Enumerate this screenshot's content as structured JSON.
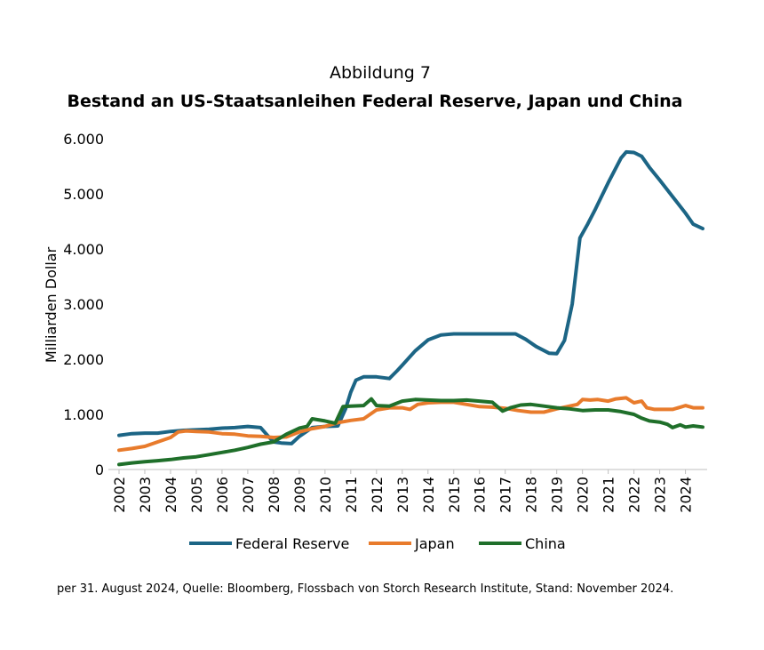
{
  "chart_data": {
    "type": "line",
    "figure_label": "Abbildung 7",
    "title": "Bestand an US-Staatsanleihen Federal Reserve, Japan und China",
    "ylabel": "Milliarden Dollar",
    "xlabel": "",
    "ylim": [
      0,
      6000
    ],
    "y_ticks": [
      0,
      1000,
      2000,
      3000,
      4000,
      5000,
      6000
    ],
    "y_tick_labels": [
      "0",
      "1.000",
      "2.000",
      "3.000",
      "4.000",
      "5.000",
      "6.000"
    ],
    "x_ticks": [
      2002,
      2003,
      2004,
      2005,
      2006,
      2007,
      2008,
      2009,
      2010,
      2011,
      2012,
      2013,
      2014,
      2015,
      2016,
      2017,
      2018,
      2019,
      2020,
      2021,
      2022,
      2023,
      2024
    ],
    "x_range": [
      2002,
      2024.67
    ],
    "legend_position": "bottom",
    "grid": false,
    "footnote": "per 31. August 2024, Quelle: Bloomberg, Flossbach von Storch Research Institute, Stand: November 2024.",
    "series": [
      {
        "name": "Federal Reserve",
        "color": "#1c6585",
        "points": [
          [
            2002.0,
            620
          ],
          [
            2002.5,
            650
          ],
          [
            2003.0,
            660
          ],
          [
            2003.5,
            660
          ],
          [
            2004.0,
            690
          ],
          [
            2004.5,
            710
          ],
          [
            2005.0,
            720
          ],
          [
            2005.5,
            730
          ],
          [
            2006.0,
            750
          ],
          [
            2006.5,
            760
          ],
          [
            2007.0,
            780
          ],
          [
            2007.5,
            760
          ],
          [
            2007.8,
            600
          ],
          [
            2008.0,
            500
          ],
          [
            2008.3,
            480
          ],
          [
            2008.7,
            470
          ],
          [
            2009.0,
            600
          ],
          [
            2009.5,
            760
          ],
          [
            2010.0,
            780
          ],
          [
            2010.5,
            790
          ],
          [
            2010.8,
            1100
          ],
          [
            2011.0,
            1400
          ],
          [
            2011.2,
            1620
          ],
          [
            2011.5,
            1680
          ],
          [
            2012.0,
            1680
          ],
          [
            2012.5,
            1650
          ],
          [
            2012.8,
            1790
          ],
          [
            2013.0,
            1890
          ],
          [
            2013.5,
            2150
          ],
          [
            2014.0,
            2350
          ],
          [
            2014.5,
            2440
          ],
          [
            2015.0,
            2460
          ],
          [
            2016.0,
            2460
          ],
          [
            2017.0,
            2460
          ],
          [
            2017.4,
            2460
          ],
          [
            2017.8,
            2360
          ],
          [
            2018.2,
            2230
          ],
          [
            2018.7,
            2110
          ],
          [
            2019.0,
            2100
          ],
          [
            2019.3,
            2340
          ],
          [
            2019.6,
            3000
          ],
          [
            2019.9,
            4200
          ],
          [
            2020.2,
            4450
          ],
          [
            2020.5,
            4720
          ],
          [
            2021.0,
            5200
          ],
          [
            2021.5,
            5650
          ],
          [
            2021.7,
            5760
          ],
          [
            2022.0,
            5750
          ],
          [
            2022.3,
            5680
          ],
          [
            2022.6,
            5480
          ],
          [
            2023.0,
            5250
          ],
          [
            2023.5,
            4950
          ],
          [
            2024.0,
            4650
          ],
          [
            2024.3,
            4450
          ],
          [
            2024.67,
            4370
          ]
        ]
      },
      {
        "name": "Japan",
        "color": "#e87b2c",
        "points": [
          [
            2002.0,
            350
          ],
          [
            2002.5,
            380
          ],
          [
            2003.0,
            420
          ],
          [
            2003.5,
            500
          ],
          [
            2004.0,
            580
          ],
          [
            2004.3,
            680
          ],
          [
            2004.6,
            700
          ],
          [
            2005.0,
            690
          ],
          [
            2005.5,
            680
          ],
          [
            2006.0,
            650
          ],
          [
            2006.5,
            640
          ],
          [
            2007.0,
            610
          ],
          [
            2007.5,
            600
          ],
          [
            2008.0,
            580
          ],
          [
            2008.5,
            590
          ],
          [
            2009.0,
            680
          ],
          [
            2009.5,
            740
          ],
          [
            2010.0,
            780
          ],
          [
            2010.5,
            850
          ],
          [
            2011.0,
            890
          ],
          [
            2011.5,
            920
          ],
          [
            2012.0,
            1080
          ],
          [
            2012.5,
            1120
          ],
          [
            2013.0,
            1120
          ],
          [
            2013.3,
            1090
          ],
          [
            2013.6,
            1180
          ],
          [
            2014.0,
            1210
          ],
          [
            2014.5,
            1220
          ],
          [
            2015.0,
            1220
          ],
          [
            2015.5,
            1180
          ],
          [
            2016.0,
            1140
          ],
          [
            2016.5,
            1130
          ],
          [
            2017.0,
            1110
          ],
          [
            2017.5,
            1070
          ],
          [
            2018.0,
            1040
          ],
          [
            2018.5,
            1040
          ],
          [
            2019.0,
            1100
          ],
          [
            2019.4,
            1140
          ],
          [
            2019.8,
            1180
          ],
          [
            2020.0,
            1270
          ],
          [
            2020.3,
            1260
          ],
          [
            2020.6,
            1270
          ],
          [
            2021.0,
            1240
          ],
          [
            2021.3,
            1280
          ],
          [
            2021.7,
            1300
          ],
          [
            2022.0,
            1210
          ],
          [
            2022.3,
            1240
          ],
          [
            2022.5,
            1120
          ],
          [
            2022.8,
            1090
          ],
          [
            2023.2,
            1090
          ],
          [
            2023.5,
            1090
          ],
          [
            2023.8,
            1130
          ],
          [
            2024.0,
            1160
          ],
          [
            2024.3,
            1120
          ],
          [
            2024.67,
            1120
          ]
        ]
      },
      {
        "name": "China",
        "color": "#1f6f2a",
        "points": [
          [
            2002.0,
            90
          ],
          [
            2002.5,
            120
          ],
          [
            2003.0,
            140
          ],
          [
            2003.5,
            160
          ],
          [
            2004.0,
            180
          ],
          [
            2004.5,
            210
          ],
          [
            2005.0,
            230
          ],
          [
            2005.5,
            270
          ],
          [
            2006.0,
            310
          ],
          [
            2006.5,
            350
          ],
          [
            2007.0,
            400
          ],
          [
            2007.5,
            460
          ],
          [
            2008.0,
            500
          ],
          [
            2008.5,
            640
          ],
          [
            2009.0,
            750
          ],
          [
            2009.3,
            780
          ],
          [
            2009.5,
            920
          ],
          [
            2010.0,
            880
          ],
          [
            2010.4,
            840
          ],
          [
            2010.7,
            1140
          ],
          [
            2011.0,
            1150
          ],
          [
            2011.5,
            1160
          ],
          [
            2011.8,
            1280
          ],
          [
            2012.0,
            1160
          ],
          [
            2012.5,
            1150
          ],
          [
            2013.0,
            1240
          ],
          [
            2013.5,
            1270
          ],
          [
            2014.0,
            1260
          ],
          [
            2014.5,
            1250
          ],
          [
            2015.0,
            1250
          ],
          [
            2015.5,
            1260
          ],
          [
            2016.0,
            1240
          ],
          [
            2016.5,
            1220
          ],
          [
            2016.9,
            1060
          ],
          [
            2017.2,
            1120
          ],
          [
            2017.6,
            1170
          ],
          [
            2018.0,
            1180
          ],
          [
            2018.5,
            1150
          ],
          [
            2019.0,
            1120
          ],
          [
            2019.5,
            1100
          ],
          [
            2020.0,
            1070
          ],
          [
            2020.5,
            1080
          ],
          [
            2021.0,
            1080
          ],
          [
            2021.5,
            1050
          ],
          [
            2022.0,
            1000
          ],
          [
            2022.3,
            930
          ],
          [
            2022.6,
            880
          ],
          [
            2023.0,
            860
          ],
          [
            2023.3,
            820
          ],
          [
            2023.5,
            760
          ],
          [
            2023.8,
            810
          ],
          [
            2024.0,
            770
          ],
          [
            2024.3,
            790
          ],
          [
            2024.67,
            770
          ]
        ]
      }
    ]
  }
}
